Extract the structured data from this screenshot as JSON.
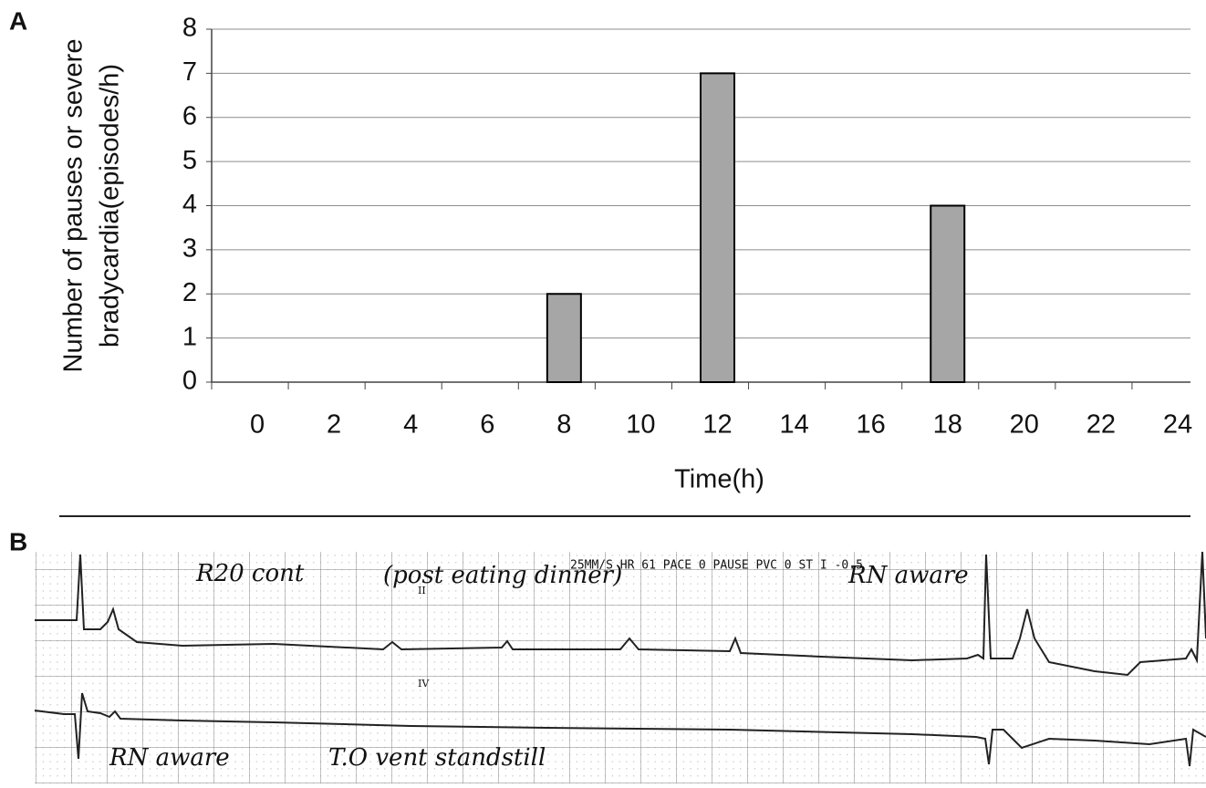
{
  "panel_a_label": "A",
  "chart_data": {
    "type": "bar",
    "categories": [
      "0",
      "2",
      "4",
      "6",
      "8",
      "10",
      "12",
      "14",
      "16",
      "18",
      "20",
      "22",
      "24"
    ],
    "values": [
      0,
      0,
      0,
      0,
      2,
      0,
      7,
      0,
      0,
      4,
      0,
      0,
      0
    ],
    "color": "#a6a6a6",
    "y_label": [
      "Number of pauses or severe",
      "bradycardia(episodes/h)"
    ],
    "x_label": "Time(h)",
    "ylim": [
      0,
      8
    ],
    "yticks": [
      0,
      1,
      2,
      3,
      4,
      5,
      6,
      7,
      8
    ],
    "grid": true
  },
  "panel_b_label": "B",
  "ecg": {
    "header": "25MM/S HR 61 PACE 0 PAUSE PVC 0 ST I -0.5",
    "leads": [
      "II",
      "IV"
    ],
    "annotations": [
      "R20 cont",
      "(post eating dinner)",
      "RN aware",
      "RN aware",
      "T.O vent standstill"
    ]
  }
}
